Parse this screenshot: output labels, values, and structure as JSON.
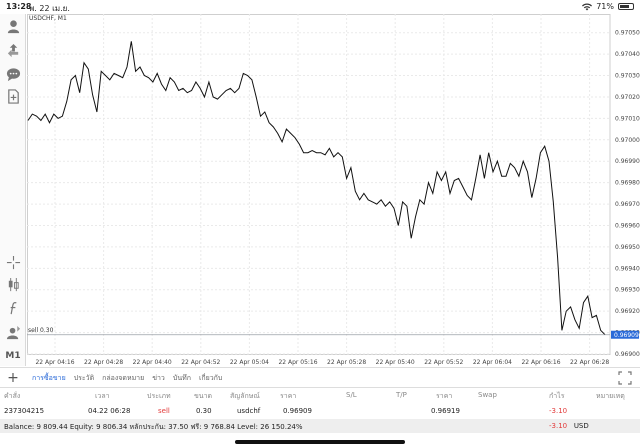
{
  "status": {
    "time": "13:28",
    "date": "พ. 22 เม.ย.",
    "battery": "71%",
    "battery_level": 0.71
  },
  "chart": {
    "symbol": "USDCHF, M1",
    "sell_label": "sell 0.30",
    "current_price": "0.96909"
  },
  "chart_data": {
    "type": "line",
    "title": "USDCHF, M1",
    "ylim": [
      0.969,
      0.97055
    ],
    "y_ticks": [
      "0.97050",
      "0.97040",
      "0.97030",
      "0.97020",
      "0.97010",
      "0.97000",
      "0.96990",
      "0.96980",
      "0.96970",
      "0.96960",
      "0.96950",
      "0.96940",
      "0.96930",
      "0.96920",
      "0.96910",
      "0.96900"
    ],
    "x_ticks": [
      "22 Apr 04:16",
      "22 Apr 04:28",
      "22 Apr 04:40",
      "22 Apr 04:52",
      "22 Apr 05:04",
      "22 Apr 05:16",
      "22 Apr 05:28",
      "22 Apr 05:40",
      "22 Apr 05:52",
      "22 Apr 06:04",
      "22 Apr 06:16",
      "22 Apr 06:28"
    ],
    "values": [
      0.97009,
      0.97012,
      0.97011,
      0.97009,
      0.97012,
      0.97008,
      0.97012,
      0.9701,
      0.97011,
      0.97018,
      0.97028,
      0.9703,
      0.97022,
      0.97036,
      0.97033,
      0.97021,
      0.97013,
      0.97032,
      0.9703,
      0.97028,
      0.97031,
      0.9703,
      0.97029,
      0.97034,
      0.97046,
      0.97032,
      0.97034,
      0.9703,
      0.97029,
      0.97027,
      0.97031,
      0.97026,
      0.97023,
      0.97029,
      0.97027,
      0.97023,
      0.97024,
      0.97022,
      0.97023,
      0.97027,
      0.97024,
      0.9702,
      0.97027,
      0.9702,
      0.97019,
      0.97021,
      0.97023,
      0.97024,
      0.97022,
      0.97024,
      0.97031,
      0.9703,
      0.97028,
      0.9702,
      0.97011,
      0.97013,
      0.97008,
      0.97006,
      0.97003,
      0.96999,
      0.97005,
      0.97003,
      0.97001,
      0.96998,
      0.96994,
      0.96994,
      0.96995,
      0.96994,
      0.96994,
      0.96993,
      0.96996,
      0.96992,
      0.96994,
      0.96992,
      0.96982,
      0.96987,
      0.96976,
      0.96972,
      0.96975,
      0.96972,
      0.96971,
      0.9697,
      0.96972,
      0.96969,
      0.96971,
      0.96968,
      0.9696,
      0.96971,
      0.96969,
      0.96954,
      0.96964,
      0.96972,
      0.9697,
      0.9698,
      0.96975,
      0.96985,
      0.96981,
      0.96985,
      0.96975,
      0.96981,
      0.96982,
      0.96978,
      0.96974,
      0.96972,
      0.96982,
      0.96993,
      0.96982,
      0.96994,
      0.96985,
      0.9699,
      0.96983,
      0.96983,
      0.96989,
      0.96987,
      0.96983,
      0.9699,
      0.96985,
      0.96973,
      0.96982,
      0.96994,
      0.96997,
      0.9699,
      0.96971,
      0.96945,
      0.96911,
      0.9692,
      0.96922,
      0.96916,
      0.96912,
      0.96924,
      0.96927,
      0.96917,
      0.96918,
      0.96911,
      0.96909
    ],
    "grid": true,
    "current_price": 0.96909
  },
  "tabs": [
    "การซื้อขาย",
    "ประวัติ",
    "กล่องจดหมาย",
    "ข่าว",
    "บันทึก",
    "เกี่ยวกับ"
  ],
  "active_tab": 0,
  "columns": [
    "คำสั่ง",
    "เวลา",
    "ประเภท",
    "ขนาด",
    "สัญลักษณ์",
    "ราคา",
    "S/L",
    "T/P",
    "ราคา",
    "Swap",
    "กำไร",
    "หมายเหตุ"
  ],
  "row": {
    "order": "237304215",
    "time": "04.22 06:28",
    "type": "sell",
    "size": "0.30",
    "symbol": "usdchf",
    "price": "0.96909",
    "sl": "",
    "tp": "",
    "current": "0.96919",
    "swap": "",
    "profit": "-3.10",
    "comment": ""
  },
  "balance": {
    "text": "Balance: 9 809.44 Equity: 9 806.34 หลักประกัน: 37.50 ฟรี: 9 768.84 Level: 26 150.24%",
    "total_value": "-3.10",
    "currency": "USD"
  },
  "colors": {
    "accent": "#2a6ad8",
    "negative": "#e23a3a"
  }
}
